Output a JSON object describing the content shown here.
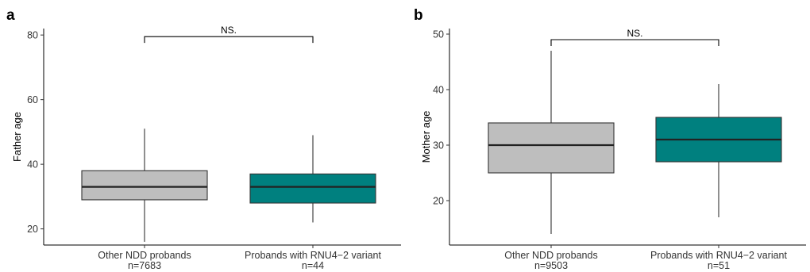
{
  "chart_data": [
    {
      "type": "box",
      "panel_label": "a",
      "ylabel": "Father age",
      "ylim": [
        15,
        82
      ],
      "yticks": [
        20,
        40,
        60,
        80
      ],
      "grid": false,
      "categories": [
        {
          "label": "Other NDD probands",
          "n_label": "n=7683"
        },
        {
          "label": "Probands with RNU4−2 variant",
          "n_label": "n=44"
        }
      ],
      "boxes": [
        {
          "min": 16,
          "q1": 29,
          "median": 33,
          "q3": 38,
          "max": 51,
          "color": "#bebebe"
        },
        {
          "min": 22,
          "q1": 28,
          "median": 33,
          "q3": 37,
          "max": 49,
          "color": "#00807f"
        }
      ],
      "significance": {
        "label": "NS.",
        "y": 79.5
      }
    },
    {
      "type": "box",
      "panel_label": "b",
      "ylabel": "Mother age",
      "ylim": [
        12,
        51
      ],
      "yticks": [
        20,
        30,
        40,
        50
      ],
      "grid": false,
      "categories": [
        {
          "label": "Other NDD probands",
          "n_label": "n=9503"
        },
        {
          "label": "Probands with RNU4−2 variant",
          "n_label": "n=51"
        }
      ],
      "boxes": [
        {
          "min": 14,
          "q1": 25,
          "median": 30,
          "q3": 34,
          "max": 47,
          "color": "#bebebe"
        },
        {
          "min": 17,
          "q1": 27,
          "median": 31,
          "q3": 35,
          "max": 41,
          "color": "#00807f"
        }
      ],
      "significance": {
        "label": "NS.",
        "y": 49
      }
    }
  ]
}
